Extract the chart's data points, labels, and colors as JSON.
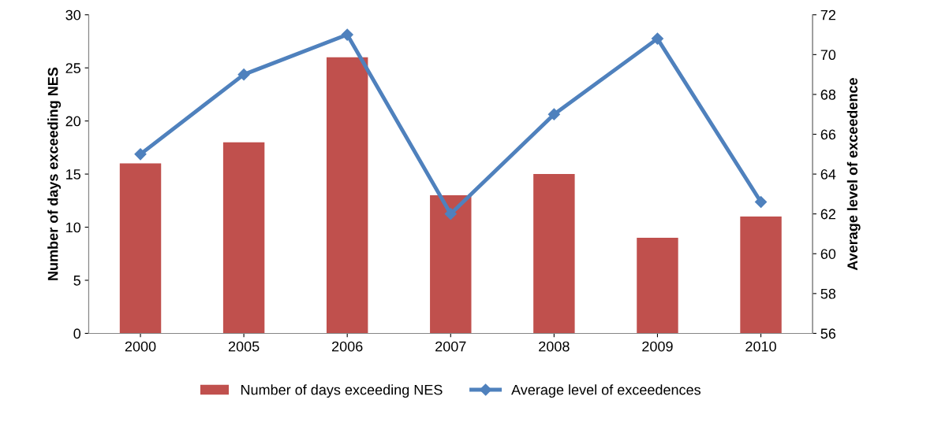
{
  "chart_data": {
    "type": "bar",
    "categories": [
      "2000",
      "2005",
      "2006",
      "2007",
      "2008",
      "2009",
      "2010"
    ],
    "ylabel": "Number of days exceeding NES",
    "y2label": "Average level of exceedence",
    "series": [
      {
        "name": "Number of days exceeding NES",
        "color": "#c0504d",
        "values": [
          16,
          18,
          26,
          13,
          15,
          9,
          11
        ]
      },
      {
        "name": "Average level of exceedences",
        "type": "line",
        "axis": "y2",
        "color": "#4f81bd",
        "marker": "diamond",
        "values": [
          65,
          69,
          71,
          62,
          67,
          70.8,
          62.6
        ]
      }
    ],
    "ylim": [
      0,
      30
    ],
    "yticks": [
      0,
      5,
      10,
      15,
      20,
      25,
      30
    ],
    "y2lim": [
      56,
      72
    ],
    "y2ticks": [
      56,
      58,
      60,
      62,
      64,
      66,
      68,
      70,
      72
    ],
    "grid": false,
    "legend": "bottom"
  }
}
